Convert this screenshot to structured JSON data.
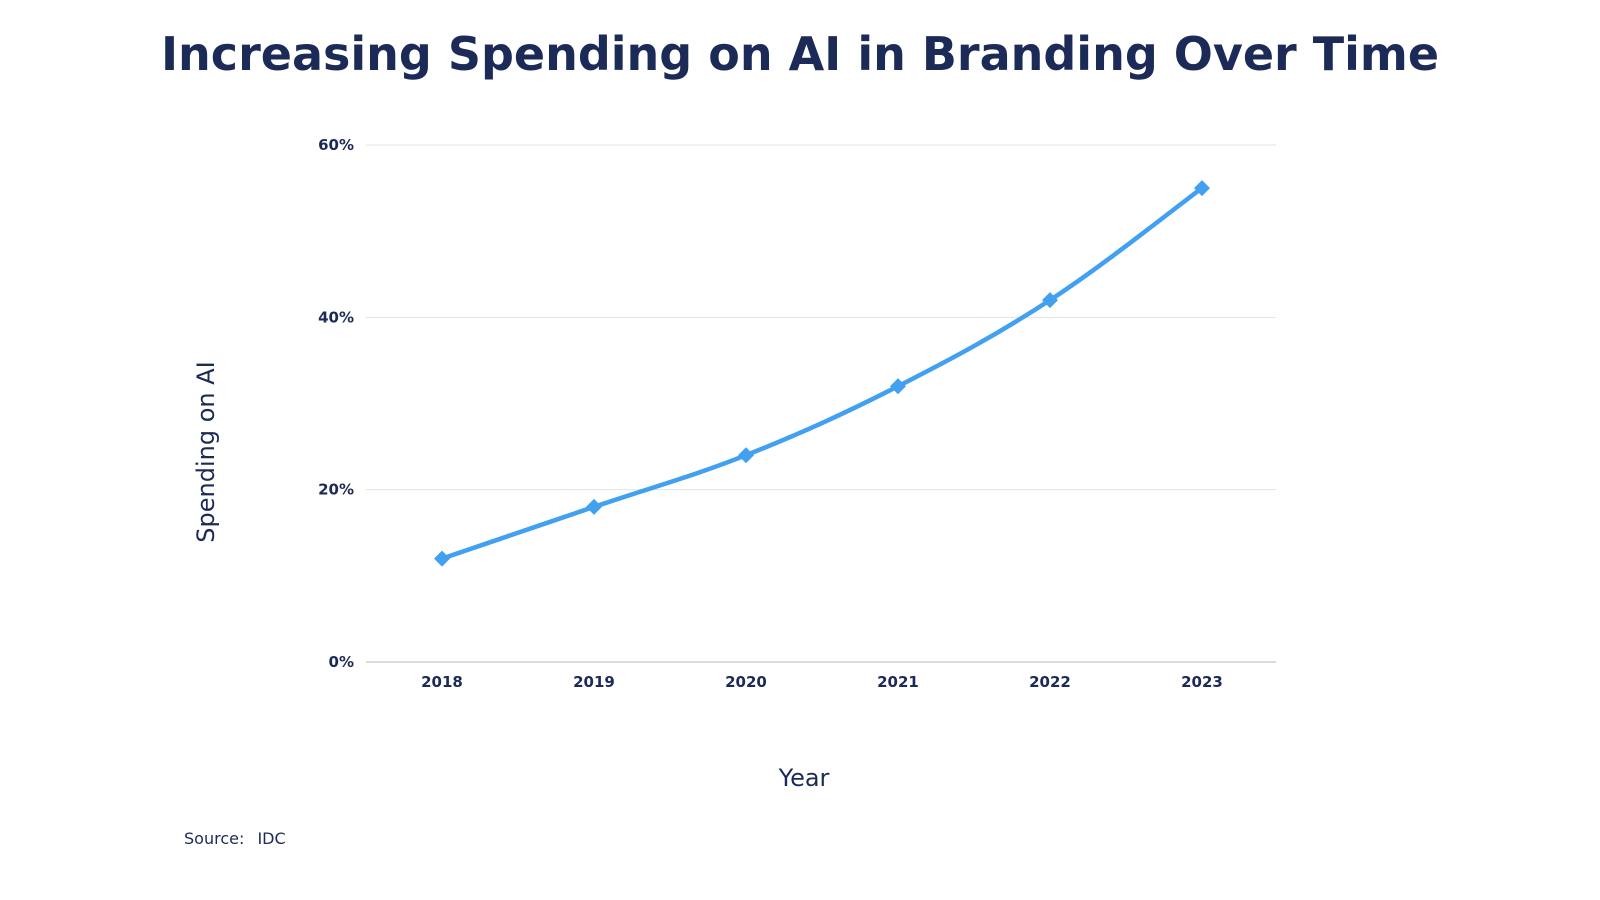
{
  "chart_data": {
    "type": "line",
    "title": "Increasing Spending on AI in Branding Over Time",
    "xlabel": "Year",
    "ylabel": "Spending on AI",
    "x": [
      "2018",
      "2019",
      "2020",
      "2021",
      "2022",
      "2023"
    ],
    "series": [
      {
        "values": [
          12,
          18,
          24,
          32,
          42,
          55
        ]
      }
    ],
    "ylim": [
      0,
      60
    ],
    "y_ticks": [
      0,
      20,
      40,
      60
    ],
    "y_tick_labels": [
      "0%",
      "20%",
      "40%",
      "60%"
    ],
    "grid": true,
    "marker": "diamond",
    "smooth": true,
    "source": {
      "label": "Source:",
      "value": "IDC"
    }
  },
  "colors": {
    "series": "#42a0f0",
    "text": "#1b2a57",
    "grid": "#e3e3e3",
    "axis": "#c8c8c8"
  }
}
